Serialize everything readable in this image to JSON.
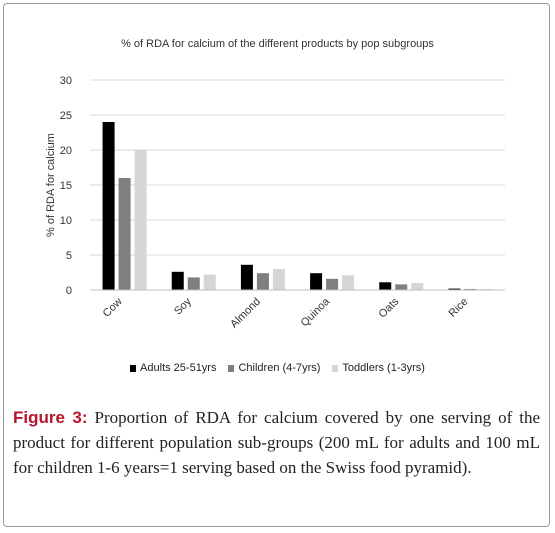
{
  "chart_data": {
    "type": "bar",
    "title": "% of RDA  for  calcium of the different  products by pop subgroups",
    "ylabel": "% of RDA for calcium",
    "xlabel": "",
    "ylim": [
      0,
      30
    ],
    "yticks": [
      "0",
      "5",
      "10",
      "15",
      "20",
      "25",
      "30"
    ],
    "grid": true,
    "legend_position": "bottom",
    "categories": [
      "Cow",
      "Soy",
      "Almond",
      "Quinoa",
      "Oats",
      "Rice"
    ],
    "series": [
      {
        "name": "Adults 25-51yrs",
        "color": "#000000",
        "values": [
          24,
          2.6,
          3.6,
          2.4,
          1.1,
          0.2
        ]
      },
      {
        "name": "Children (4-7yrs)",
        "color": "#7f7f7f",
        "values": [
          16,
          1.8,
          2.4,
          1.6,
          0.8,
          0.15
        ]
      },
      {
        "name": "Toddlers (1-3yrs)",
        "color": "#d6d6d6",
        "values": [
          20,
          2.2,
          3.0,
          2.1,
          1.0,
          0.15
        ]
      }
    ]
  },
  "caption": {
    "lead": "Figure 3:",
    "text": " Proportion of RDA for calcium covered by one serving of the product for different population sub-groups (200 mL for adults and 100 mL for children 1-6 years=1 serving based on the Swiss food pyramid)."
  }
}
